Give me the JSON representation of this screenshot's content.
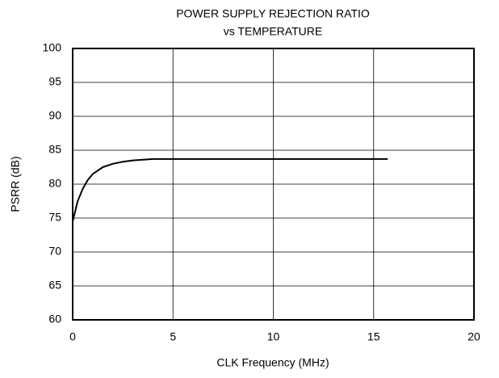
{
  "chart_data": {
    "type": "line",
    "title": "POWER SUPPLY REJECTION RATIO",
    "subtitle": "vs TEMPERATURE",
    "xlabel": "CLK Frequency (MHz)",
    "ylabel": "PSRR (dB)",
    "x": [
      0,
      0.25,
      0.5,
      0.75,
      1,
      1.5,
      2,
      2.5,
      3,
      3.5,
      4,
      6,
      10,
      15.7
    ],
    "values": [
      74.5,
      77.5,
      79.3,
      80.6,
      81.5,
      82.5,
      83.0,
      83.3,
      83.5,
      83.6,
      83.7,
      83.7,
      83.7,
      83.7
    ],
    "color": "#000000",
    "xlim": [
      0,
      20
    ],
    "xticks": [
      0,
      5,
      10,
      15,
      20
    ],
    "ylim": [
      60,
      100
    ],
    "yticks": [
      60,
      65,
      70,
      75,
      80,
      85,
      90,
      95,
      100
    ],
    "grid": true
  }
}
